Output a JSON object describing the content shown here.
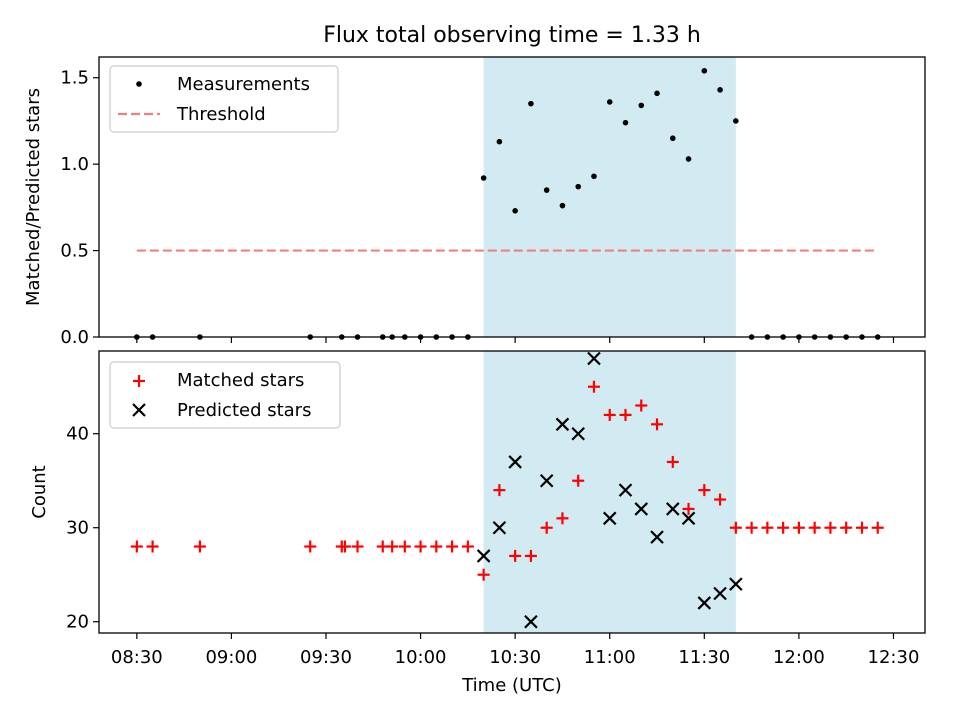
{
  "chart_data": [
    {
      "type": "scatter",
      "panel": "top",
      "title": "Flux total observing time = 1.33 h",
      "xlabel": "",
      "ylabel": "Matched/Predicted stars",
      "ylim": [
        0,
        1.62
      ],
      "yticks": [
        0.0,
        0.5,
        1.0,
        1.5
      ],
      "ytick_labels": [
        "0.0",
        "0.5",
        "1.0",
        "1.5"
      ],
      "legend_position": "top-left",
      "shaded_interval": {
        "start": "10:20",
        "end": "11:40",
        "color": "#add8e6"
      },
      "series": [
        {
          "name": "Measurements",
          "marker": "dot",
          "color": "#000000",
          "points": [
            [
              "08:30",
              0.0
            ],
            [
              "08:35",
              0.0
            ],
            [
              "08:50",
              0.0
            ],
            [
              "09:25",
              0.0
            ],
            [
              "09:35",
              0.0
            ],
            [
              "09:40",
              0.0
            ],
            [
              "09:48",
              0.0
            ],
            [
              "09:51",
              0.0
            ],
            [
              "09:55",
              0.0
            ],
            [
              "10:00",
              0.0
            ],
            [
              "10:05",
              0.0
            ],
            [
              "10:10",
              0.0
            ],
            [
              "10:15",
              0.0
            ],
            [
              "10:20",
              0.92
            ],
            [
              "10:25",
              1.13
            ],
            [
              "10:30",
              0.73
            ],
            [
              "10:35",
              1.35
            ],
            [
              "10:40",
              0.85
            ],
            [
              "10:45",
              0.76
            ],
            [
              "10:50",
              0.87
            ],
            [
              "10:55",
              0.93
            ],
            [
              "11:00",
              1.36
            ],
            [
              "11:05",
              1.24
            ],
            [
              "11:10",
              1.34
            ],
            [
              "11:15",
              1.41
            ],
            [
              "11:20",
              1.15
            ],
            [
              "11:25",
              1.03
            ],
            [
              "11:30",
              1.54
            ],
            [
              "11:35",
              1.43
            ],
            [
              "11:40",
              1.25
            ],
            [
              "11:45",
              0.0
            ],
            [
              "11:50",
              0.0
            ],
            [
              "11:55",
              0.0
            ],
            [
              "12:00",
              0.0
            ],
            [
              "12:05",
              0.0
            ],
            [
              "12:10",
              0.0
            ],
            [
              "12:15",
              0.0
            ],
            [
              "12:20",
              0.0
            ],
            [
              "12:25",
              0.0
            ]
          ]
        },
        {
          "name": "Threshold",
          "marker": "dashed-line",
          "color": "#f08080",
          "points": [
            [
              "08:30",
              0.5
            ],
            [
              "12:25",
              0.5
            ]
          ]
        }
      ]
    },
    {
      "type": "scatter",
      "panel": "bottom",
      "title": "",
      "xlabel": "Time (UTC)",
      "ylabel": "Count",
      "xlim": [
        "08:18",
        "12:40"
      ],
      "ylim": [
        18.8,
        48.8
      ],
      "yticks": [
        20,
        30,
        40
      ],
      "ytick_labels": [
        "20",
        "30",
        "40"
      ],
      "xticks": [
        "08:30",
        "09:00",
        "09:30",
        "10:00",
        "10:30",
        "11:00",
        "11:30",
        "12:00",
        "12:30"
      ],
      "legend_position": "top-left",
      "shaded_interval": {
        "start": "10:20",
        "end": "11:40",
        "color": "#add8e6"
      },
      "series": [
        {
          "name": "Matched stars",
          "marker": "plus",
          "color": "#ff0000",
          "points": [
            [
              "08:30",
              28
            ],
            [
              "08:35",
              28
            ],
            [
              "08:50",
              28
            ],
            [
              "09:25",
              28
            ],
            [
              "09:35",
              28
            ],
            [
              "09:36",
              28
            ],
            [
              "09:40",
              28
            ],
            [
              "09:48",
              28
            ],
            [
              "09:51",
              28
            ],
            [
              "09:55",
              28
            ],
            [
              "10:00",
              28
            ],
            [
              "10:05",
              28
            ],
            [
              "10:10",
              28
            ],
            [
              "10:15",
              28
            ],
            [
              "10:20",
              25
            ],
            [
              "10:25",
              34
            ],
            [
              "10:30",
              27
            ],
            [
              "10:35",
              27
            ],
            [
              "10:40",
              30
            ],
            [
              "10:45",
              31
            ],
            [
              "10:50",
              35
            ],
            [
              "10:55",
              45
            ],
            [
              "11:00",
              42
            ],
            [
              "11:05",
              42
            ],
            [
              "11:10",
              43
            ],
            [
              "11:15",
              41
            ],
            [
              "11:20",
              37
            ],
            [
              "11:25",
              32
            ],
            [
              "11:30",
              34
            ],
            [
              "11:35",
              33
            ],
            [
              "11:40",
              30
            ],
            [
              "11:45",
              30
            ],
            [
              "11:50",
              30
            ],
            [
              "11:55",
              30
            ],
            [
              "12:00",
              30
            ],
            [
              "12:05",
              30
            ],
            [
              "12:10",
              30
            ],
            [
              "12:15",
              30
            ],
            [
              "12:20",
              30
            ],
            [
              "12:25",
              30
            ]
          ]
        },
        {
          "name": "Predicted stars",
          "marker": "x",
          "color": "#000000",
          "points": [
            [
              "10:20",
              27
            ],
            [
              "10:25",
              30
            ],
            [
              "10:30",
              37
            ],
            [
              "10:35",
              20
            ],
            [
              "10:40",
              35
            ],
            [
              "10:45",
              41
            ],
            [
              "10:50",
              40
            ],
            [
              "10:55",
              48
            ],
            [
              "11:00",
              31
            ],
            [
              "11:05",
              34
            ],
            [
              "11:10",
              32
            ],
            [
              "11:15",
              29
            ],
            [
              "11:20",
              32
            ],
            [
              "11:25",
              31
            ],
            [
              "11:30",
              22
            ],
            [
              "11:35",
              23
            ],
            [
              "11:40",
              24
            ]
          ]
        }
      ]
    }
  ]
}
